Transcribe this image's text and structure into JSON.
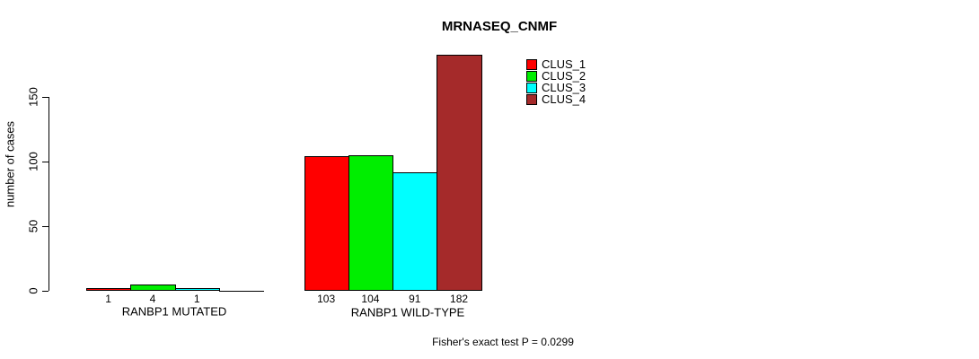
{
  "chart_data": {
    "type": "bar",
    "title": "MRNASEQ_CNMF",
    "xlabel": "",
    "ylabel": "number of cases",
    "ylim": [
      0,
      190
    ],
    "yticks": [
      0,
      50,
      100,
      150
    ],
    "grid": false,
    "legend_position": "top-right",
    "categories": [
      "RANBP1 MUTATED",
      "RANBP1 WILD-TYPE"
    ],
    "series": [
      {
        "name": "CLUS_1",
        "color": "#ff0000",
        "values": [
          1,
          103
        ]
      },
      {
        "name": "CLUS_2",
        "color": "#00ee00",
        "values": [
          4,
          104
        ]
      },
      {
        "name": "CLUS_3",
        "color": "#00ffff",
        "values": [
          1,
          91
        ]
      },
      {
        "name": "CLUS_4",
        "color": "#a52a2a",
        "values": [
          0,
          182
        ]
      }
    ],
    "bar_value_labels": [
      [
        "1",
        "4",
        "1",
        ""
      ],
      [
        "103",
        "104",
        "91",
        "182"
      ]
    ],
    "annotation": "Fisher's exact test P = 0.0299"
  }
}
